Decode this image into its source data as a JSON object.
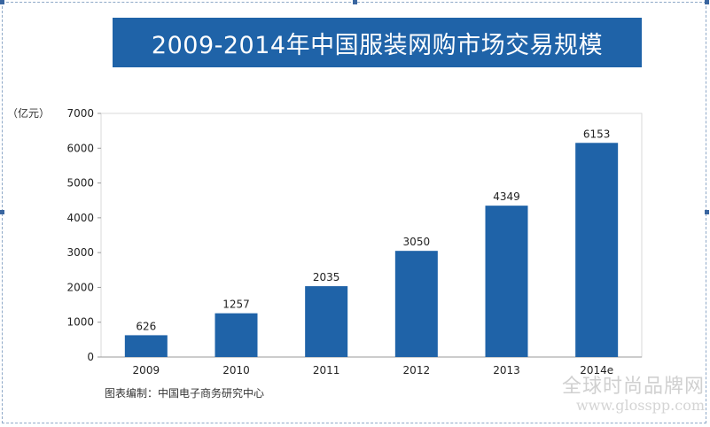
{
  "title": "2009-2014年中国服装网购市场交易规模",
  "unit_label": "（亿元）",
  "source": "图表编制：中国电子商务研究中心",
  "watermark": {
    "chinese": "全球时尚品牌网",
    "url": "www.glosspp.com"
  },
  "colors": {
    "bar": "#1f63a8",
    "title_bg": "#1f63a8",
    "axis": "#999999",
    "grid": "#d8d8d8"
  },
  "chart_data": {
    "type": "bar",
    "title": "2009-2014年中国服装网购市场交易规模",
    "ylabel": "（亿元）",
    "xlabel": "",
    "categories": [
      "2009",
      "2010",
      "2011",
      "2012",
      "2013",
      "2014e"
    ],
    "values": [
      626,
      1257,
      2035,
      3050,
      4349,
      6153
    ],
    "ylim": [
      0,
      7000
    ],
    "yticks": [
      0,
      1000,
      2000,
      3000,
      4000,
      5000,
      6000,
      7000
    ],
    "grid": false,
    "legend": "none"
  }
}
